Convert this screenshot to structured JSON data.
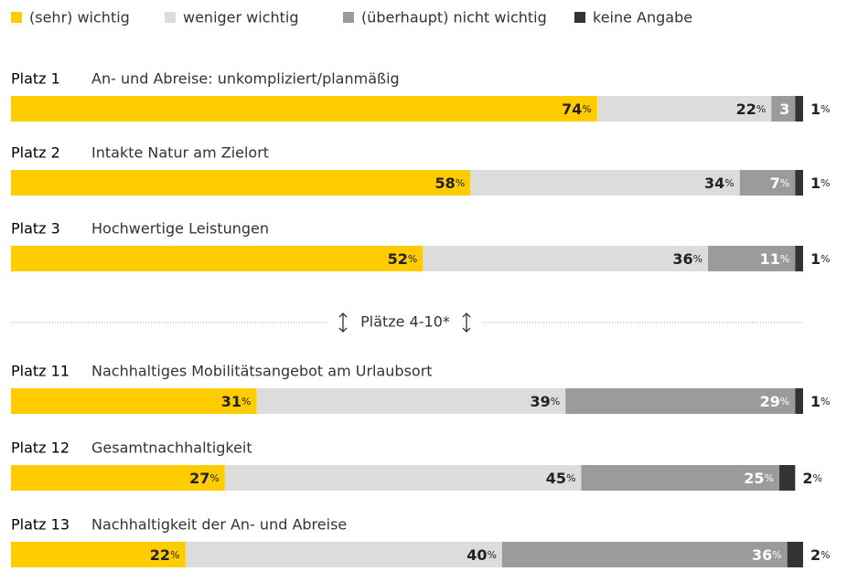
{
  "chart_data": {
    "type": "stacked_bar_100",
    "ranks": [
      "Platz 1",
      "Platz 2",
      "Platz 3",
      "Platz 11",
      "Platz 12",
      "Platz 13"
    ],
    "categories": [
      "An- und Abreise: unkompliziert/planmäßig",
      "Intakte Natur am Zielort",
      "Hochwertige Leistungen",
      "Nachhaltiges Mobilitätsangebot am Urlaubsort",
      "Gesamtnachhaltigkeit",
      "Nachhaltigkeit der An- und Abreise"
    ],
    "series": [
      {
        "name": "(sehr) wichtig",
        "color": "#ffcc00",
        "label_color": "#222222",
        "values": [
          74,
          58,
          52,
          31,
          27,
          22
        ],
        "value_labels": [
          "74%",
          "58%",
          "52%",
          "31%",
          "27%",
          "22%"
        ]
      },
      {
        "name": "weniger wichtig",
        "color": "#dcdcdc",
        "label_color": "#222222",
        "values": [
          22,
          34,
          36,
          39,
          45,
          40
        ],
        "value_labels": [
          "22%",
          "34%",
          "36%",
          "39%",
          "45%",
          "40%"
        ]
      },
      {
        "name": "(überhaupt) nicht wichtig",
        "color": "#9b9b9b",
        "label_color": "#ffffff",
        "values": [
          3,
          7,
          11,
          29,
          25,
          36
        ],
        "value_labels": [
          "3",
          "7%",
          "11%",
          "29%",
          "25%",
          "36%"
        ]
      },
      {
        "name": "keine Angabe",
        "color": "#333333",
        "label_color": "#222222",
        "values": [
          1,
          1,
          1,
          1,
          2,
          2
        ],
        "value_labels": [
          "1%",
          "1%",
          "1%",
          "1%",
          "2%",
          "2%"
        ]
      }
    ],
    "xlim": [
      0,
      100
    ],
    "annotation": "Plätze 4-10*"
  }
}
